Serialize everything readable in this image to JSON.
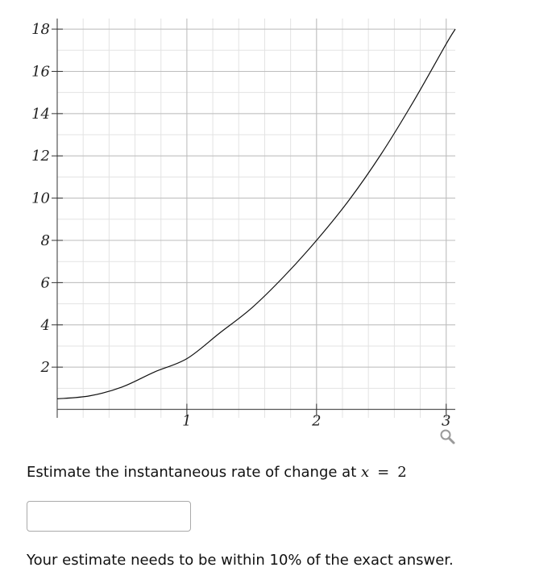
{
  "chart_data": {
    "type": "line",
    "title": "",
    "xlabel": "",
    "ylabel": "",
    "xlim": [
      0,
      3.07
    ],
    "ylim": [
      -0.4,
      18.5
    ],
    "x_ticks": [
      1,
      2,
      3
    ],
    "y_ticks": [
      2,
      4,
      6,
      8,
      10,
      12,
      14,
      16,
      18
    ],
    "x_minor_step": 0.2,
    "y_minor_step": 1,
    "grid": true,
    "series": [
      {
        "name": "",
        "x": [
          0,
          0.25,
          0.5,
          0.75,
          1,
          1.25,
          1.5,
          1.75,
          2,
          2.25,
          2.5,
          2.75,
          3,
          3.07
        ],
        "y": [
          0.5,
          0.64,
          1.06,
          1.77,
          2.4,
          3.6,
          4.8,
          6.3,
          8.0,
          9.9,
          12.1,
          14.6,
          17.3,
          18.0
        ]
      }
    ]
  },
  "question": {
    "prefix": "Estimate the instantaneous rate of change at ",
    "variable": "x",
    "equals": "=",
    "value": "2"
  },
  "answer": {
    "value": "",
    "placeholder": ""
  },
  "tolerance_note": "Your estimate needs to be within 10% of the exact answer.",
  "icons": {
    "zoom": "magnifier-icon"
  }
}
